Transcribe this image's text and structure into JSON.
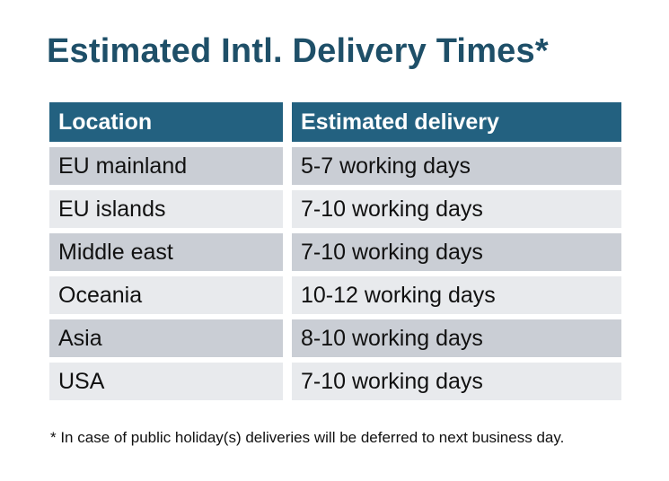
{
  "page": {
    "title": "Estimated Intl. Delivery Times*",
    "footnote": "* In case of public holiday(s) deliveries will be deferred to next business day."
  },
  "table": {
    "columns": [
      "Location",
      "Estimated delivery"
    ],
    "rows": [
      {
        "location": "EU mainland",
        "delivery": "5-7 working days"
      },
      {
        "location": "EU islands",
        "delivery": "7-10 working days"
      },
      {
        "location": "Middle east",
        "delivery": "7-10 working days"
      },
      {
        "location": "Oceania",
        "delivery": "10-12 working days"
      },
      {
        "location": "Asia",
        "delivery": "8-10 working days"
      },
      {
        "location": "USA",
        "delivery": "7-10 working days"
      }
    ]
  },
  "colors": {
    "title_text": "#1e4f68",
    "header_bg": "#236180",
    "header_text": "#ffffff",
    "row_dark_bg": "#caced5",
    "row_light_bg": "#e8eaed",
    "body_text": "#111111",
    "background": "#ffffff"
  }
}
